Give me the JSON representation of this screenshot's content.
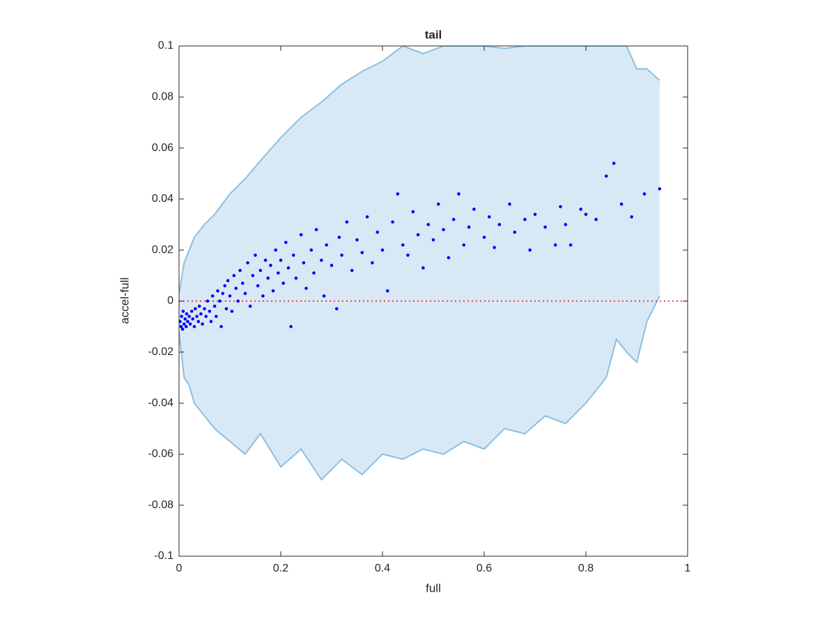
{
  "chart_data": {
    "type": "scatter",
    "title": "tail",
    "xlabel": "full",
    "ylabel": "accel-full",
    "xlim": [
      0,
      1
    ],
    "ylim": [
      -0.1,
      0.1
    ],
    "xticks": [
      0,
      0.2,
      0.4,
      0.6,
      0.8,
      1
    ],
    "yticks": [
      -0.1,
      -0.08,
      -0.06,
      -0.04,
      -0.02,
      0,
      0.02,
      0.04,
      0.06,
      0.08,
      0.1
    ],
    "band": {
      "fill": "#d9e8f5",
      "color": "#8bbfe0",
      "x": [
        0,
        0.01,
        0.02,
        0.03,
        0.05,
        0.07,
        0.1,
        0.13,
        0.16,
        0.2,
        0.24,
        0.28,
        0.32,
        0.36,
        0.4,
        0.44,
        0.48,
        0.52,
        0.56,
        0.6,
        0.64,
        0.68,
        0.72,
        0.76,
        0.8,
        0.84,
        0.86,
        0.88,
        0.9,
        0.92,
        0.945
      ],
      "upper": [
        0.003,
        0.015,
        0.02,
        0.025,
        0.03,
        0.034,
        0.042,
        0.048,
        0.055,
        0.064,
        0.072,
        0.078,
        0.085,
        0.09,
        0.094,
        0.1,
        0.097,
        0.1,
        0.1,
        0.1,
        0.099,
        0.1,
        0.1,
        0.1,
        0.1,
        0.1,
        0.1,
        0.1,
        0.091,
        0.091,
        0.0865
      ],
      "lower": [
        -0.012,
        -0.03,
        -0.033,
        -0.04,
        -0.045,
        -0.05,
        -0.055,
        -0.06,
        -0.052,
        -0.065,
        -0.058,
        -0.07,
        -0.062,
        -0.068,
        -0.06,
        -0.062,
        -0.058,
        -0.06,
        -0.055,
        -0.058,
        -0.05,
        -0.052,
        -0.045,
        -0.048,
        -0.04,
        -0.03,
        -0.015,
        -0.02,
        -0.024,
        -0.008,
        0.002
      ]
    },
    "reference_line": {
      "value": 0,
      "color": "#ff0000"
    },
    "points": {
      "color": "#0000ff",
      "x": [
        0.002,
        0.004,
        0.005,
        0.007,
        0.008,
        0.01,
        0.012,
        0.014,
        0.015,
        0.017,
        0.02,
        0.022,
        0.025,
        0.027,
        0.03,
        0.032,
        0.035,
        0.038,
        0.04,
        0.043,
        0.046,
        0.05,
        0.053,
        0.056,
        0.06,
        0.063,
        0.066,
        0.07,
        0.073,
        0.076,
        0.08,
        0.083,
        0.086,
        0.09,
        0.093,
        0.096,
        0.1,
        0.104,
        0.108,
        0.112,
        0.116,
        0.12,
        0.125,
        0.13,
        0.135,
        0.14,
        0.145,
        0.15,
        0.155,
        0.16,
        0.165,
        0.17,
        0.175,
        0.18,
        0.185,
        0.19,
        0.195,
        0.2,
        0.205,
        0.21,
        0.215,
        0.22,
        0.225,
        0.23,
        0.24,
        0.245,
        0.25,
        0.26,
        0.265,
        0.27,
        0.28,
        0.285,
        0.29,
        0.3,
        0.31,
        0.315,
        0.32,
        0.33,
        0.34,
        0.35,
        0.36,
        0.37,
        0.38,
        0.39,
        0.4,
        0.41,
        0.42,
        0.43,
        0.44,
        0.45,
        0.46,
        0.47,
        0.48,
        0.49,
        0.5,
        0.51,
        0.52,
        0.53,
        0.54,
        0.55,
        0.56,
        0.57,
        0.58,
        0.6,
        0.61,
        0.62,
        0.63,
        0.65,
        0.66,
        0.68,
        0.69,
        0.7,
        0.72,
        0.74,
        0.75,
        0.76,
        0.77,
        0.79,
        0.8,
        0.82,
        0.84,
        0.855,
        0.87,
        0.89,
        0.915,
        0.945
      ],
      "values": [
        -0.008,
        -0.01,
        -0.006,
        -0.011,
        -0.004,
        -0.009,
        -0.007,
        -0.01,
        -0.005,
        -0.008,
        -0.006,
        -0.009,
        -0.004,
        -0.007,
        -0.01,
        -0.003,
        -0.006,
        -0.008,
        -0.002,
        -0.005,
        -0.009,
        -0.003,
        -0.006,
        0,
        -0.004,
        -0.008,
        0.002,
        -0.002,
        -0.006,
        0.004,
        0,
        -0.01,
        0.003,
        0.006,
        -0.003,
        0.008,
        0.002,
        -0.004,
        0.01,
        0.005,
        0,
        0.012,
        0.007,
        0.003,
        0.015,
        -0.002,
        0.01,
        0.018,
        0.006,
        0.012,
        0.002,
        0.016,
        0.009,
        0.014,
        0.004,
        0.02,
        0.011,
        0.016,
        0.007,
        0.023,
        0.013,
        -0.01,
        0.018,
        0.009,
        0.026,
        0.015,
        0.005,
        0.02,
        0.011,
        0.028,
        0.016,
        0.002,
        0.022,
        0.014,
        -0.003,
        0.025,
        0.018,
        0.031,
        0.012,
        0.024,
        0.019,
        0.033,
        0.015,
        0.027,
        0.02,
        0.004,
        0.031,
        0.042,
        0.022,
        0.018,
        0.035,
        0.026,
        0.013,
        0.03,
        0.024,
        0.038,
        0.028,
        0.017,
        0.032,
        0.042,
        0.022,
        0.029,
        0.036,
        0.025,
        0.033,
        0.021,
        0.03,
        0.038,
        0.027,
        0.032,
        0.02,
        0.034,
        0.029,
        0.022,
        0.037,
        0.03,
        0.022,
        0.036,
        0.034,
        0.032,
        0.049,
        0.054,
        0.038,
        0.033,
        0.042,
        0.044
      ]
    }
  }
}
